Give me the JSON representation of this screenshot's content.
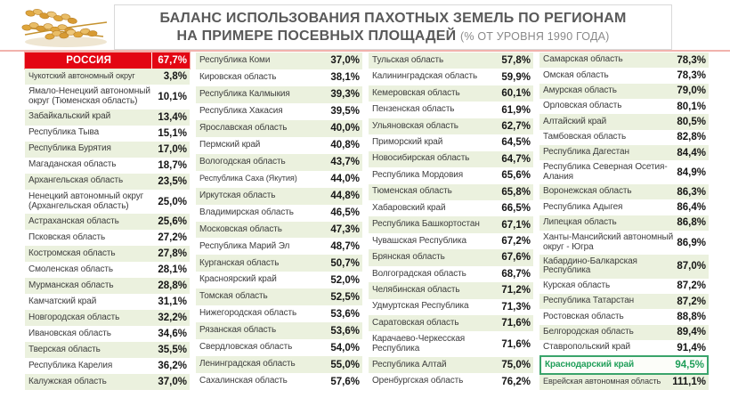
{
  "header": {
    "title_line1": "БАЛАНС ИСПОЛЬЗОВАНИЯ ПАХОТНЫХ ЗЕМЕЛЬ ПО РЕГИОНАМ",
    "title_line2": "НА ПРИМЕРЕ ПОСЕВНЫХ ПЛОЩАДЕЙ",
    "title_suffix": "(% ОТ УРОВНЯ 1990 ГОДА)",
    "logo_icon": "wheat-ears-icon"
  },
  "colors": {
    "russia_row_bg": "#E30613",
    "alt_row_bg": "#EBF1DE",
    "highlight_green": "#1F9E59",
    "highlight_border": "#3AA46B",
    "title_gray": "#595959",
    "box_border": "#D9D9D9",
    "top_line": "#F1B3AD"
  },
  "chart_data": {
    "type": "table",
    "title": "Баланс использования пахотных земель по регионам на примере посевных площадей",
    "unit": "% от уровня 1990 года",
    "total_row": {
      "name": "РОССИЯ",
      "value": "67,7%"
    },
    "highlighted_region": {
      "name": "Краснодарский край",
      "value": "94,5%"
    },
    "columns": [
      {
        "rows": [
          {
            "name": "РОССИЯ",
            "value": "67,7%",
            "style": "russia"
          },
          {
            "name": "Чукотский автономный округ",
            "value": "3,8%"
          },
          {
            "name": "Ямало-Ненецкий автономный округ (Тюменская область)",
            "value": "10,1%"
          },
          {
            "name": "Забайкальский край",
            "value": "13,4%"
          },
          {
            "name": "Республика Тыва",
            "value": "15,1%"
          },
          {
            "name": "Республика Бурятия",
            "value": "17,0%"
          },
          {
            "name": "Магаданская область",
            "value": "18,7%"
          },
          {
            "name": "Архангельская область",
            "value": "23,5%"
          },
          {
            "name": "Ненецкий автономный округ (Архангельская область)",
            "value": "25,0%"
          },
          {
            "name": "Астраханская область",
            "value": "25,6%"
          },
          {
            "name": "Псковская область",
            "value": "27,2%"
          },
          {
            "name": "Костромская область",
            "value": "27,8%"
          },
          {
            "name": "Смоленская область",
            "value": "28,1%"
          },
          {
            "name": "Мурманская область",
            "value": "28,8%"
          },
          {
            "name": "Камчатский край",
            "value": "31,1%"
          },
          {
            "name": "Новгородская область",
            "value": "32,2%"
          },
          {
            "name": "Ивановская область",
            "value": "34,6%"
          },
          {
            "name": "Тверская область",
            "value": "35,5%"
          },
          {
            "name": "Республика Карелия",
            "value": "36,2%"
          },
          {
            "name": "Калужская область",
            "value": "37,0%"
          }
        ]
      },
      {
        "rows": [
          {
            "name": "Республика Коми",
            "value": "37,0%"
          },
          {
            "name": "Кировская область",
            "value": "38,1%"
          },
          {
            "name": "Республика Калмыкия",
            "value": "39,3%"
          },
          {
            "name": "Республика Хакасия",
            "value": "39,5%"
          },
          {
            "name": "Ярославская область",
            "value": "40,0%"
          },
          {
            "name": "Пермский край",
            "value": "40,8%"
          },
          {
            "name": "Вологодская область",
            "value": "43,7%"
          },
          {
            "name": "Республика Саха (Якутия)",
            "value": "44,0%"
          },
          {
            "name": "Иркутская область",
            "value": "44,8%"
          },
          {
            "name": "Владимирская область",
            "value": "46,5%"
          },
          {
            "name": "Московская область",
            "value": "47,3%"
          },
          {
            "name": "Республика Марий Эл",
            "value": "48,7%"
          },
          {
            "name": "Курганская область",
            "value": "50,7%"
          },
          {
            "name": "Красноярский край",
            "value": "52,0%"
          },
          {
            "name": "Томская область",
            "value": "52,5%"
          },
          {
            "name": "Нижегородская область",
            "value": "53,6%"
          },
          {
            "name": "Рязанская область",
            "value": "53,6%"
          },
          {
            "name": "Свердловская область",
            "value": "54,0%"
          },
          {
            "name": "Ленинградская область",
            "value": "55,0%"
          },
          {
            "name": "Сахалинская область",
            "value": "57,6%"
          }
        ]
      },
      {
        "rows": [
          {
            "name": "Тульская область",
            "value": "57,8%"
          },
          {
            "name": "Калининградская область",
            "value": "59,9%"
          },
          {
            "name": "Кемеровская область",
            "value": "60,1%"
          },
          {
            "name": "Пензенская область",
            "value": "61,9%"
          },
          {
            "name": "Ульяновская область",
            "value": "62,7%"
          },
          {
            "name": "Приморский край",
            "value": "64,5%"
          },
          {
            "name": "Новосибирская область",
            "value": "64,7%"
          },
          {
            "name": "Республика Мордовия",
            "value": "65,6%"
          },
          {
            "name": "Тюменская область",
            "value": "65,8%"
          },
          {
            "name": "Хабаровский край",
            "value": "66,5%"
          },
          {
            "name": "Республика Башкортостан",
            "value": "67,1%"
          },
          {
            "name": "Чувашская Республика",
            "value": "67,2%"
          },
          {
            "name": "Брянская область",
            "value": "67,6%"
          },
          {
            "name": "Волгоградская область",
            "value": "68,7%"
          },
          {
            "name": "Челябинская область",
            "value": "71,2%"
          },
          {
            "name": "Удмуртская Республика",
            "value": "71,3%"
          },
          {
            "name": "Саратовская область",
            "value": "71,6%"
          },
          {
            "name": "Карачаево-Черкесская Республика",
            "value": "71,6%"
          },
          {
            "name": "Республика Алтай",
            "value": "75,0%"
          },
          {
            "name": "Оренбургская область",
            "value": "76,2%"
          }
        ]
      },
      {
        "rows": [
          {
            "name": "Самарская область",
            "value": "78,3%"
          },
          {
            "name": "Омская область",
            "value": "78,3%"
          },
          {
            "name": "Амурская область",
            "value": "79,0%"
          },
          {
            "name": "Орловская область",
            "value": "80,1%"
          },
          {
            "name": "Алтайский край",
            "value": "80,5%"
          },
          {
            "name": "Тамбовская область",
            "value": "82,8%"
          },
          {
            "name": "Республика Дагестан",
            "value": "84,4%"
          },
          {
            "name": "Республика Северная Осетия-Алания",
            "value": "84,9%"
          },
          {
            "name": "Воронежская область",
            "value": "86,3%"
          },
          {
            "name": "Республика Адыгея",
            "value": "86,4%"
          },
          {
            "name": "Липецкая область",
            "value": "86,8%"
          },
          {
            "name": "Ханты-Мансийский автономный округ - Югра",
            "value": "86,9%"
          },
          {
            "name": "Кабардино-Балкарская Республика",
            "value": "87,0%"
          },
          {
            "name": "Курская область",
            "value": "87,2%"
          },
          {
            "name": "Республика Татарстан",
            "value": "87,2%"
          },
          {
            "name": "Ростовская область",
            "value": "88,8%"
          },
          {
            "name": "Белгородская область",
            "value": "89,4%"
          },
          {
            "name": "Ставропольский край",
            "value": "91,4%"
          },
          {
            "name": "Краснодарский край",
            "value": "94,5%",
            "style": "highlight"
          },
          {
            "name": "Еврейская автономная область",
            "value": "111,1%",
            "shade": "green"
          }
        ]
      }
    ]
  }
}
